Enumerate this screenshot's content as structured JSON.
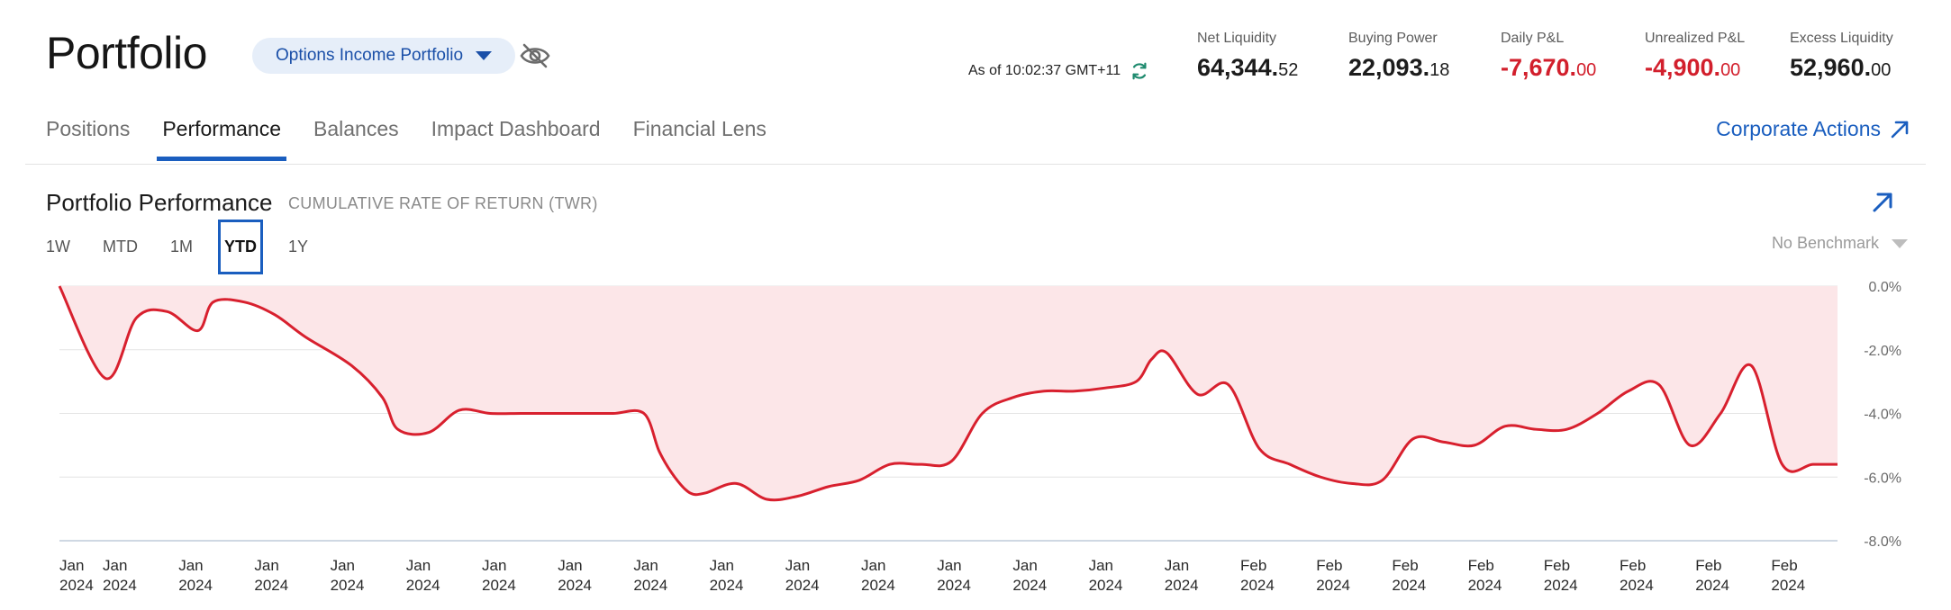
{
  "header": {
    "title": "Portfolio",
    "account_selector": "Options Income Portfolio",
    "as_of": "As of 10:02:37 GMT+11",
    "metrics": [
      {
        "label": "Net Liquidity",
        "int": "64,344.",
        "dec": "52",
        "negative": false
      },
      {
        "label": "Buying Power",
        "int": "22,093.",
        "dec": "18",
        "negative": false
      },
      {
        "label": "Daily P&L",
        "int": "-7,670.",
        "dec": "00",
        "negative": true
      },
      {
        "label": "Unrealized P&L",
        "int": "-4,900.",
        "dec": "00",
        "negative": true
      },
      {
        "label": "Excess Liquidity",
        "int": "52,960.",
        "dec": "00",
        "negative": false
      }
    ]
  },
  "tabs": [
    {
      "label": "Positions",
      "active": false
    },
    {
      "label": "Performance",
      "active": true
    },
    {
      "label": "Balances",
      "active": false
    },
    {
      "label": "Impact Dashboard",
      "active": false
    },
    {
      "label": "Financial Lens",
      "active": false
    }
  ],
  "corporate_actions": "Corporate Actions",
  "performance": {
    "title": "Portfolio Performance",
    "subtitle": "CUMULATIVE RATE OF RETURN (TWR)",
    "ranges": [
      {
        "label": "1W",
        "active": false
      },
      {
        "label": "MTD",
        "active": false
      },
      {
        "label": "1M",
        "active": false
      },
      {
        "label": "YTD",
        "active": true
      },
      {
        "label": "1Y",
        "active": false
      }
    ],
    "benchmark": "No Benchmark"
  },
  "colors": {
    "accent": "#1a5ebf",
    "negative": "#d21f2c",
    "area_fill": "#fce6e8",
    "line": "#d8202e"
  },
  "icons": {
    "account_caret": "chevron-down-icon",
    "visibility": "eye-off-icon",
    "refresh": "refresh-icon",
    "corporate_actions": "arrow-up-right-icon",
    "expand": "arrow-up-right-icon",
    "benchmark_caret": "chevron-down-icon"
  },
  "chart_data": {
    "type": "area",
    "y_unit": "%",
    "ylim": [
      -8.0,
      0.0
    ],
    "y_ticks": [
      "0.0%",
      "-2.0%",
      "-4.0%",
      "-6.0%",
      "-8.0%"
    ],
    "y_tick_values": [
      0,
      -2,
      -4,
      -6,
      -8
    ],
    "x_ticks": [
      {
        "month": "Jan",
        "year": "2024"
      },
      {
        "month": "Jan",
        "year": "2024"
      },
      {
        "month": "Jan",
        "year": "2024"
      },
      {
        "month": "Jan",
        "year": "2024"
      },
      {
        "month": "Jan",
        "year": "2024"
      },
      {
        "month": "Jan",
        "year": "2024"
      },
      {
        "month": "Jan",
        "year": "2024"
      },
      {
        "month": "Jan",
        "year": "2024"
      },
      {
        "month": "Jan",
        "year": "2024"
      },
      {
        "month": "Jan",
        "year": "2024"
      },
      {
        "month": "Jan",
        "year": "2024"
      },
      {
        "month": "Jan",
        "year": "2024"
      },
      {
        "month": "Jan",
        "year": "2024"
      },
      {
        "month": "Jan",
        "year": "2024"
      },
      {
        "month": "Jan",
        "year": "2024"
      },
      {
        "month": "Jan",
        "year": "2024"
      },
      {
        "month": "Feb",
        "year": "2024"
      },
      {
        "month": "Feb",
        "year": "2024"
      },
      {
        "month": "Feb",
        "year": "2024"
      },
      {
        "month": "Feb",
        "year": "2024"
      },
      {
        "month": "Feb",
        "year": "2024"
      },
      {
        "month": "Feb",
        "year": "2024"
      },
      {
        "month": "Feb",
        "year": "2024"
      },
      {
        "month": "Feb",
        "year": "2024"
      }
    ],
    "x": [
      0,
      1.5,
      2.5,
      3.5,
      4.5,
      5,
      6,
      7,
      8,
      9.5,
      10.5,
      11,
      12,
      13,
      14,
      15,
      16,
      17,
      18,
      19,
      19.5,
      20,
      20.5,
      21,
      22,
      23,
      24,
      25,
      26,
      27,
      28,
      29,
      30,
      31,
      32,
      33,
      34,
      35,
      35.5,
      36,
      37,
      38,
      39,
      40,
      41,
      42,
      43,
      44,
      45,
      46,
      47,
      48,
      49,
      50,
      51,
      52,
      53,
      54,
      55,
      56,
      57,
      57.8
    ],
    "series": [
      {
        "values": [
          0,
          -2.9,
          -1.0,
          -0.8,
          -1.4,
          -0.5,
          -0.5,
          -0.9,
          -1.6,
          -2.5,
          -3.5,
          -4.5,
          -4.6,
          -3.9,
          -4.0,
          -4.0,
          -4.0,
          -4.0,
          -4.0,
          -4.0,
          -5.2,
          -6.0,
          -6.5,
          -6.5,
          -6.2,
          -6.7,
          -6.6,
          -6.3,
          -6.1,
          -5.6,
          -5.6,
          -5.5,
          -4.0,
          -3.5,
          -3.3,
          -3.3,
          -3.2,
          -3.0,
          -2.3,
          -2.1,
          -3.4,
          -3.1,
          -5.1,
          -5.6,
          -6.0,
          -6.2,
          -6.1,
          -4.8,
          -4.9,
          -5.0,
          -4.4,
          -4.5,
          -4.5,
          -4.0,
          -3.3,
          -3.1,
          -5.0,
          -4.0,
          -2.5,
          -5.6,
          -5.6,
          -5.6
        ]
      }
    ],
    "grid": true,
    "legend": "none"
  }
}
